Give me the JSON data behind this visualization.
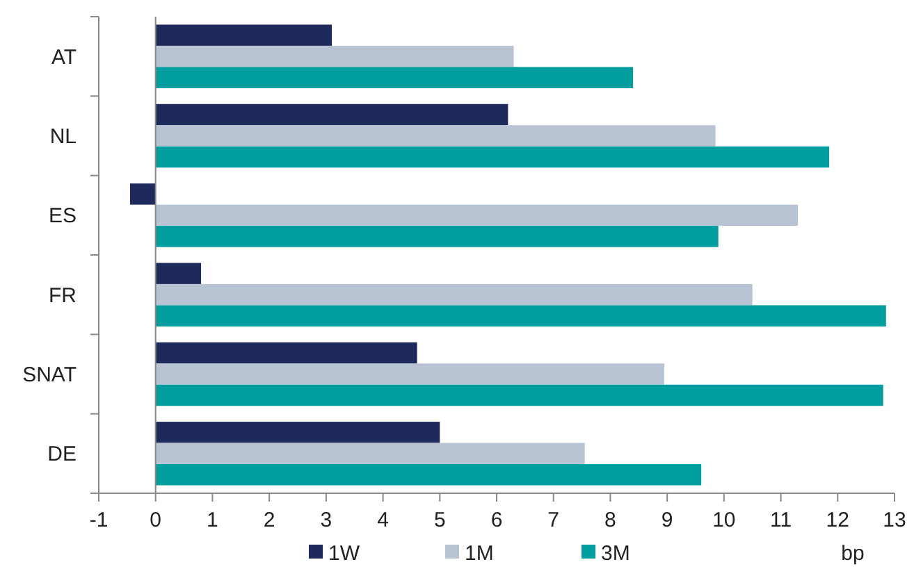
{
  "chart_data": {
    "type": "bar",
    "orientation": "horizontal",
    "categories": [
      "AT",
      "NL",
      "ES",
      "FR",
      "SNAT",
      "DE"
    ],
    "series": [
      {
        "name": "1W",
        "color": "#1f2a5c",
        "values": [
          3.1,
          6.2,
          -0.45,
          0.8,
          4.6,
          5.0
        ]
      },
      {
        "name": "1M",
        "color": "#b8c3d4",
        "values": [
          6.3,
          9.85,
          11.3,
          10.5,
          8.95,
          7.55
        ]
      },
      {
        "name": "3M",
        "color": "#009e9e",
        "values": [
          8.4,
          11.85,
          9.9,
          12.85,
          12.8,
          9.6
        ]
      }
    ],
    "xlabel": "bp",
    "xlim": [
      -1,
      13
    ],
    "xticks": [
      -1,
      0,
      1,
      2,
      3,
      4,
      5,
      6,
      7,
      8,
      9,
      10,
      11,
      12,
      13
    ],
    "legend": "bottom"
  }
}
